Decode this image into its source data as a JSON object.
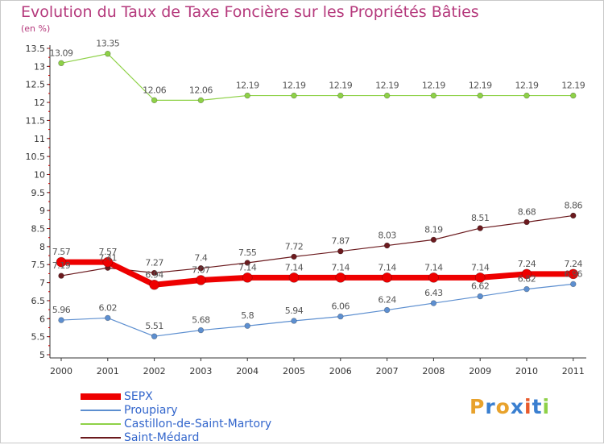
{
  "header": {
    "title": "Evolution du Taux de Taxe Foncière sur les Propriétés Bâties",
    "subtitle": "(en %)"
  },
  "logo": {
    "text": "Proxiti"
  },
  "chart_data": {
    "type": "line",
    "title": "Evolution du Taux de Taxe Foncière sur les Propriétés Bâties",
    "ylabel": "(en %)",
    "xlabel": "",
    "categories": [
      "2000",
      "2001",
      "2002",
      "2003",
      "2004",
      "2005",
      "2006",
      "2007",
      "2008",
      "2009",
      "2010",
      "2011"
    ],
    "ylim": [
      5,
      13.5
    ],
    "yticks": [
      "5",
      "5.5",
      "6",
      "6.5",
      "7",
      "7.5",
      "8",
      "8.5",
      "9",
      "9.5",
      "10",
      "10.5",
      "11",
      "11.5",
      "12",
      "12.5",
      "13",
      "13.5"
    ],
    "grid": false,
    "legend_position": "bottom-left",
    "series": [
      {
        "name": "SEPX",
        "color": "#ee0000",
        "values": [
          7.57,
          7.57,
          6.94,
          7.07,
          7.14,
          7.14,
          7.14,
          7.14,
          7.14,
          7.14,
          7.24,
          7.24
        ],
        "labels": [
          "7.57",
          "7.57",
          "6.94",
          "7.07",
          "7.14",
          "7.14",
          "7.14",
          "7.14",
          "7.14",
          "7.14",
          "7.24",
          "7.24"
        ]
      },
      {
        "name": "Proupiary",
        "color": "#5d8fd0",
        "values": [
          5.96,
          6.02,
          5.51,
          5.68,
          5.8,
          5.94,
          6.06,
          6.24,
          6.43,
          6.62,
          6.82,
          6.96
        ],
        "labels": [
          "5.96",
          "6.02",
          "5.51",
          "5.68",
          "5.8",
          "5.94",
          "6.06",
          "6.24",
          "6.43",
          "6.62",
          "6.82",
          "6.96"
        ]
      },
      {
        "name": "Castillon-de-Saint-Martory",
        "color": "#8ed147",
        "values": [
          13.09,
          13.35,
          12.06,
          12.06,
          12.19,
          12.19,
          12.19,
          12.19,
          12.19,
          12.19,
          12.19,
          12.19
        ],
        "labels": [
          "13.09",
          "13.35",
          "12.06",
          "12.06",
          "12.19",
          "12.19",
          "12.19",
          "12.19",
          "12.19",
          "12.19",
          "12.19",
          "12.19"
        ]
      },
      {
        "name": "Saint-Médard",
        "color": "#6b1a1e",
        "values": [
          7.19,
          7.41,
          7.27,
          7.4,
          7.55,
          7.72,
          7.87,
          8.03,
          8.19,
          8.51,
          8.68,
          8.86
        ],
        "labels": [
          "7.19",
          "7.41",
          "7.27",
          "7.4",
          "7.55",
          "7.72",
          "7.87",
          "8.03",
          "8.19",
          "8.51",
          "8.68",
          "8.86"
        ]
      }
    ]
  }
}
